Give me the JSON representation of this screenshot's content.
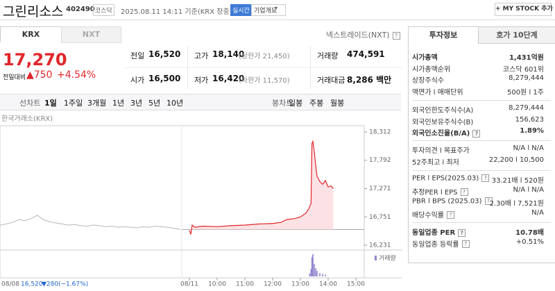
{
  "header": {
    "name": "그린리소스",
    "code": "402490",
    "market": "코스닥",
    "time": "2025.08.11 14:11 기준(KRX 장중)",
    "realtime": "실시간",
    "overview": "기업개요",
    "mystock": "+ MY STOCK 추가"
  },
  "tabs": [
    "KRX",
    "NXT"
  ],
  "nxt_link": "넥스트레이드(NXT)",
  "quote": {
    "price": "17,270",
    "change_label": "전일대비",
    "change": "▲750",
    "rate": "+4.54%"
  },
  "summary": [
    [
      {
        "label": "전일",
        "value": "16,520"
      },
      {
        "label": "고가",
        "value": "18,140",
        "note": "(상한가 21,450)",
        "tone": "up"
      },
      {
        "label": "거래량",
        "value": "474,591"
      }
    ],
    [
      {
        "label": "시가",
        "value": "16,500",
        "tone": "down"
      },
      {
        "label": "저가",
        "value": "16,420",
        "note": "(하한가 11,570)",
        "tone": "down"
      },
      {
        "label": "거래대금",
        "value": "8,286 백만"
      }
    ]
  ],
  "periods": [
    "선차트",
    "1일",
    "1주일",
    "3개월",
    "1년",
    "3년",
    "5년",
    "10년"
  ],
  "selected_period": 1,
  "candles": [
    "봉차트",
    "일봉",
    "주봉",
    "월봉"
  ],
  "chart_data": {
    "type": "line",
    "source": "한국거래소(KRX)",
    "ylim": [
      16231,
      18312
    ],
    "yticks": [
      {
        "value": 18312,
        "label": "18,312"
      },
      {
        "value": 17792,
        "label": "17,792"
      },
      {
        "value": 17271,
        "label": "17,271"
      },
      {
        "value": 16751,
        "label": "16,751"
      },
      {
        "value": 16231,
        "label": "16,231"
      }
    ],
    "xticks": [
      {
        "value": "09:00",
        "label": "08/11"
      },
      "10:00",
      "11:00",
      "12:00",
      "13:00",
      "14:00",
      "15:00"
    ],
    "baseline": 16520,
    "series": [
      {
        "color": "#e0262b",
        "x": [
          "09:00",
          "09:03",
          "09:06",
          "09:12",
          "09:30",
          "10:00",
          "10:30",
          "11:00",
          "11:30",
          "12:00",
          "12:18",
          "12:30",
          "12:48",
          "13:00",
          "13:12",
          "13:18",
          "13:23",
          "13:25",
          "13:27",
          "13:30",
          "13:33",
          "13:36",
          "13:42",
          "13:48",
          "13:54",
          "14:00",
          "14:06",
          "14:11"
        ],
        "values": [
          16500,
          16430,
          16600,
          16560,
          16580,
          16570,
          16590,
          16600,
          16620,
          16630,
          16650,
          16700,
          16720,
          16750,
          16820,
          16900,
          17000,
          18100,
          18140,
          17950,
          17700,
          17500,
          17400,
          17350,
          17420,
          17300,
          17320,
          17270
        ]
      }
    ],
    "prev_day": {
      "color": "#b8b8b8",
      "values": [
        16600,
        16620,
        16650,
        16700,
        16680,
        16720,
        16780,
        16700,
        16660,
        16640,
        16620,
        16600,
        16610,
        16590,
        16580,
        16600,
        16590,
        16570,
        16580,
        16560,
        16570,
        16560,
        16550,
        16570,
        16560,
        16580,
        16570,
        16560,
        16540,
        16520
      ]
    },
    "volume": {
      "name": "거래량",
      "color": "#8f84cf",
      "x": [
        "13:20",
        "13:23",
        "13:25",
        "13:27",
        "13:30",
        "13:33",
        "13:36",
        "13:42",
        "13:48",
        "13:54"
      ],
      "values": [
        8000,
        20000,
        52000,
        60000,
        34000,
        22000,
        15000,
        9000,
        7000,
        5000
      ]
    },
    "volume_lim": [
      0,
      60000
    ],
    "prev_summary": {
      "date": "08/08",
      "price": "16,520",
      "change": "▼280",
      "rate": "(−1.67%)"
    }
  },
  "invest": {
    "tabs": [
      "투자정보",
      "호가 10단계"
    ],
    "groups": [
      [
        {
          "label": "시가총액",
          "value": "1,431억원",
          "bold": true
        },
        {
          "label": "시가총액순위",
          "value": "코스닥 601위"
        },
        {
          "label": "상장주식수",
          "value": "8,279,444"
        },
        {
          "label": "액면가 l 매매단위",
          "value": "500원 l 1주"
        }
      ],
      [
        {
          "label": "외국인한도주식수(A)",
          "value": "8,279,444"
        },
        {
          "label": "외국인보유주식수(B)",
          "value": "156,623"
        },
        {
          "label": "외국인소진율(B/A)",
          "value": "1.89%",
          "bold": true,
          "help": true
        }
      ],
      [
        {
          "label": "투자의견 l 목표주가",
          "value": "N/A l N/A"
        },
        {
          "label": "52주최고 l 최저",
          "value": "22,200 l 10,500"
        }
      ],
      [
        {
          "label": "PER l EPS(2025.03)",
          "value": "33.21배 l 520원",
          "help": true
        },
        {
          "label": "추정PER l EPS",
          "value": "N/A l N/A",
          "help": true
        },
        {
          "label": "PBR l BPS (2025.03)",
          "value": "2.30배 l 7,521원",
          "help": true
        },
        {
          "label": "배당수익률",
          "value": "N/A",
          "help": true
        }
      ],
      [
        {
          "label": "동일업종 PER",
          "value": "10.78배",
          "bold": true,
          "help": true
        },
        {
          "label": "동일업종 등락률",
          "value": "+0.51%",
          "tone": "up",
          "help": true
        }
      ]
    ]
  }
}
